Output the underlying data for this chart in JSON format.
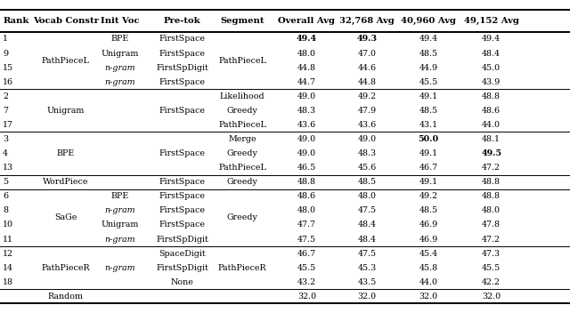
{
  "columns": [
    "Rank",
    "Vocab Constr",
    "Init Voc",
    "Pre-tok",
    "Segment",
    "Overall Avg",
    "32,768 Avg",
    "40,960 Avg",
    "49,152 Avg"
  ],
  "groups": [
    {
      "rows": [
        {
          "rank": "1",
          "init": "BPE",
          "pretok": "FirstSpace",
          "ov": "49.4",
          "a32": "49.3",
          "a40": "49.4",
          "a49": "49.4",
          "bold_ov": true,
          "bold_32": true,
          "bold_40": false,
          "bold_49": false
        },
        {
          "rank": "9",
          "init": "Unigram",
          "pretok": "FirstSpace",
          "ov": "48.0",
          "a32": "47.0",
          "a40": "48.5",
          "a49": "48.4",
          "bold_ov": false,
          "bold_32": false,
          "bold_40": false,
          "bold_49": false
        },
        {
          "rank": "15",
          "init": "n-gram",
          "pretok": "FirstSpDigit",
          "ov": "44.8",
          "a32": "44.6",
          "a40": "44.9",
          "a49": "45.0",
          "bold_ov": false,
          "bold_32": false,
          "bold_40": false,
          "bold_49": false
        },
        {
          "rank": "16",
          "init": "n-gram",
          "pretok": "FirstSpace",
          "ov": "44.7",
          "a32": "44.8",
          "a40": "45.5",
          "a49": "43.9",
          "bold_ov": false,
          "bold_32": false,
          "bold_40": false,
          "bold_49": false
        }
      ],
      "vocab_span": "PathPieceL",
      "seg_span": "PathPieceL"
    },
    {
      "rows": [
        {
          "rank": "2",
          "init": "",
          "pretok": "",
          "seg_col": "Likelihood",
          "ov": "49.0",
          "a32": "49.2",
          "a40": "49.1",
          "a49": "48.8",
          "bold_ov": false,
          "bold_32": false,
          "bold_40": false,
          "bold_49": false
        },
        {
          "rank": "7",
          "init": "",
          "pretok": "FirstSpace",
          "seg_col": "Greedy",
          "ov": "48.3",
          "a32": "47.9",
          "a40": "48.5",
          "a49": "48.6",
          "bold_ov": false,
          "bold_32": false,
          "bold_40": false,
          "bold_49": false
        },
        {
          "rank": "17",
          "init": "",
          "pretok": "",
          "seg_col": "PathPieceL",
          "ov": "43.6",
          "a32": "43.6",
          "a40": "43.1",
          "a49": "44.0",
          "bold_ov": false,
          "bold_32": false,
          "bold_40": false,
          "bold_49": false
        }
      ],
      "vocab_span": "Unigram",
      "seg_span": ""
    },
    {
      "rows": [
        {
          "rank": "3",
          "init": "",
          "pretok": "",
          "seg_col": "Merge",
          "ov": "49.0",
          "a32": "49.0",
          "a40": "50.0",
          "a49": "48.1",
          "bold_ov": false,
          "bold_32": false,
          "bold_40": true,
          "bold_49": false
        },
        {
          "rank": "4",
          "init": "",
          "pretok": "FirstSpace",
          "seg_col": "Greedy",
          "ov": "49.0",
          "a32": "48.3",
          "a40": "49.1",
          "a49": "49.5",
          "bold_ov": false,
          "bold_32": false,
          "bold_40": false,
          "bold_49": true
        },
        {
          "rank": "13",
          "init": "",
          "pretok": "",
          "seg_col": "PathPieceL",
          "ov": "46.5",
          "a32": "45.6",
          "a40": "46.7",
          "a49": "47.2",
          "bold_ov": false,
          "bold_32": false,
          "bold_40": false,
          "bold_49": false
        }
      ],
      "vocab_span": "BPE",
      "seg_span": ""
    },
    {
      "rows": [
        {
          "rank": "5",
          "init": "",
          "pretok": "FirstSpace",
          "seg_col": "Greedy",
          "ov": "48.8",
          "a32": "48.5",
          "a40": "49.1",
          "a49": "48.8",
          "bold_ov": false,
          "bold_32": false,
          "bold_40": false,
          "bold_49": false
        }
      ],
      "vocab_span": "WordPiece",
      "seg_span": ""
    },
    {
      "rows": [
        {
          "rank": "6",
          "init": "BPE",
          "pretok": "FirstSpace",
          "ov": "48.6",
          "a32": "48.0",
          "a40": "49.2",
          "a49": "48.8",
          "bold_ov": false,
          "bold_32": false,
          "bold_40": false,
          "bold_49": false
        },
        {
          "rank": "8",
          "init": "n-gram",
          "pretok": "FirstSpace",
          "ov": "48.0",
          "a32": "47.5",
          "a40": "48.5",
          "a49": "48.0",
          "bold_ov": false,
          "bold_32": false,
          "bold_40": false,
          "bold_49": false
        },
        {
          "rank": "10",
          "init": "Unigram",
          "pretok": "FirstSpace",
          "ov": "47.7",
          "a32": "48.4",
          "a40": "46.9",
          "a49": "47.8",
          "bold_ov": false,
          "bold_32": false,
          "bold_40": false,
          "bold_49": false
        },
        {
          "rank": "11",
          "init": "n-gram",
          "pretok": "FirstSpDigit",
          "ov": "47.5",
          "a32": "48.4",
          "a40": "46.9",
          "a49": "47.2",
          "bold_ov": false,
          "bold_32": false,
          "bold_40": false,
          "bold_49": false
        }
      ],
      "vocab_span": "SaGe",
      "seg_span": "Greedy"
    },
    {
      "rows": [
        {
          "rank": "12",
          "init": "",
          "pretok": "SpaceDigit",
          "ov": "46.7",
          "a32": "47.5",
          "a40": "45.4",
          "a49": "47.3",
          "bold_ov": false,
          "bold_32": false,
          "bold_40": false,
          "bold_49": false
        },
        {
          "rank": "14",
          "init": "n-gram",
          "pretok": "FirstSpDigit",
          "ov": "45.5",
          "a32": "45.3",
          "a40": "45.8",
          "a49": "45.5",
          "bold_ov": false,
          "bold_32": false,
          "bold_40": false,
          "bold_49": false
        },
        {
          "rank": "18",
          "init": "",
          "pretok": "None",
          "ov": "43.2",
          "a32": "43.5",
          "a40": "44.0",
          "a49": "42.2",
          "bold_ov": false,
          "bold_32": false,
          "bold_40": false,
          "bold_49": false
        }
      ],
      "vocab_span": "PathPieceR",
      "seg_span": "PathPieceR",
      "init_ngram_row": 1
    },
    {
      "rows": [
        {
          "rank": "",
          "init": "",
          "pretok": "",
          "ov": "32.0",
          "a32": "32.0",
          "a40": "32.0",
          "a49": "32.0",
          "bold_ov": false,
          "bold_32": false,
          "bold_40": false,
          "bold_49": false
        }
      ],
      "vocab_span": "Random",
      "seg_span": ""
    }
  ],
  "bg_color": "#ffffff",
  "text_color": "#000000",
  "font_size": 6.8,
  "header_font_size": 7.2
}
